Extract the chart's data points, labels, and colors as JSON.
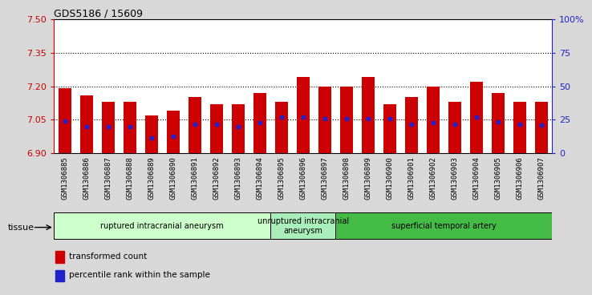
{
  "title": "GDS5186 / 15609",
  "samples": [
    "GSM1306885",
    "GSM1306886",
    "GSM1306887",
    "GSM1306888",
    "GSM1306889",
    "GSM1306890",
    "GSM1306891",
    "GSM1306892",
    "GSM1306893",
    "GSM1306894",
    "GSM1306895",
    "GSM1306896",
    "GSM1306897",
    "GSM1306898",
    "GSM1306899",
    "GSM1306900",
    "GSM1306901",
    "GSM1306902",
    "GSM1306903",
    "GSM1306904",
    "GSM1306905",
    "GSM1306906",
    "GSM1306907"
  ],
  "bar_values": [
    7.19,
    7.16,
    7.13,
    7.13,
    7.07,
    7.09,
    7.15,
    7.12,
    7.12,
    7.17,
    7.13,
    7.24,
    7.2,
    7.2,
    7.24,
    7.12,
    7.15,
    7.2,
    7.13,
    7.22,
    7.17,
    7.13,
    7.13
  ],
  "bar_bottom": 6.9,
  "blue_dot_values": [
    7.045,
    7.02,
    7.02,
    7.02,
    6.97,
    6.975,
    7.03,
    7.03,
    7.02,
    7.035,
    7.06,
    7.06,
    7.055,
    7.055,
    7.055,
    7.055,
    7.03,
    7.035,
    7.03,
    7.06,
    7.04,
    7.03,
    7.025
  ],
  "ylim": [
    6.9,
    7.5
  ],
  "yticks": [
    6.9,
    7.05,
    7.2,
    7.35,
    7.5
  ],
  "y_right_tick_labels": [
    "0",
    "25",
    "50",
    "75",
    "100%"
  ],
  "y_right_tick_positions": [
    6.9,
    7.05,
    7.2,
    7.35,
    7.5
  ],
  "hlines": [
    7.05,
    7.2,
    7.35
  ],
  "bar_color": "#cc0000",
  "dot_color": "#2222cc",
  "bar_width": 0.6,
  "groups": [
    {
      "label": "ruptured intracranial aneurysm",
      "start": 0,
      "end": 10,
      "color": "#ccffcc"
    },
    {
      "label": "unruptured intracranial\naneurysm",
      "start": 10,
      "end": 13,
      "color": "#aaeebb"
    },
    {
      "label": "superficial temporal artery",
      "start": 13,
      "end": 23,
      "color": "#44bb44"
    }
  ],
  "tissue_label": "tissue",
  "legend_items": [
    {
      "label": "transformed count",
      "color": "#cc0000"
    },
    {
      "label": "percentile rank within the sample",
      "color": "#2222cc"
    }
  ],
  "bg_color": "#d8d8d8",
  "plot_bg": "#ffffff",
  "left_axis_color": "#cc0000",
  "right_axis_color": "#2222cc"
}
